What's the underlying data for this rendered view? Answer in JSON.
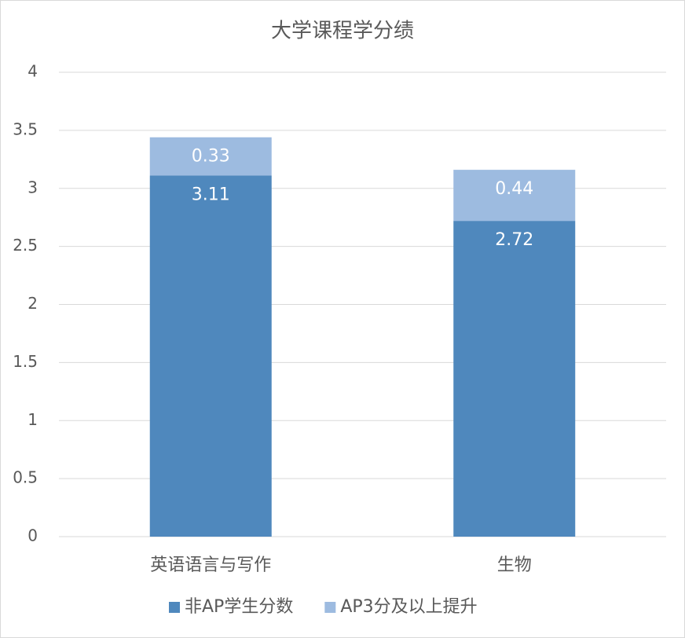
{
  "chart_data": {
    "type": "stacked_bar",
    "title": "大学课程学分绩",
    "categories": [
      "英语语言与写作",
      "生物"
    ],
    "series": [
      {
        "name": "非AP学生分数",
        "color": "#4f88bd",
        "values": [
          3.11,
          2.72
        ]
      },
      {
        "name": "AP3分及以上提升",
        "color": "#9dbbe0",
        "values": [
          0.33,
          0.44
        ]
      }
    ],
    "ylim": [
      0,
      4
    ],
    "yticks": [
      0,
      0.5,
      1,
      1.5,
      2,
      2.5,
      3,
      3.5,
      4
    ],
    "grid": true,
    "legend": "bottom"
  }
}
